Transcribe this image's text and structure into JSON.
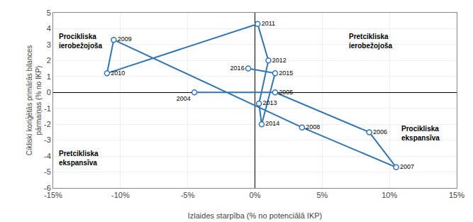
{
  "chart_data": {
    "type": "line",
    "x": [
      -4.5,
      1.5,
      8.5,
      10.5,
      3.5,
      -10.5,
      -11.0,
      0.2,
      1.0,
      0.3,
      0.5,
      1.5,
      -0.5
    ],
    "values": [
      0.0,
      0.0,
      -2.5,
      -4.7,
      -2.2,
      3.3,
      1.2,
      4.3,
      2.0,
      -0.7,
      -2.0,
      1.2,
      1.5
    ],
    "point_labels": [
      "2004",
      "2005",
      "2006",
      "2007",
      "2008",
      "2009",
      "2010",
      "2011",
      "2012",
      "2013",
      "2014",
      "2015",
      "2016"
    ],
    "color": "#2E75B6",
    "marker": "circle",
    "xlabel": "Izlaides starpība (% no potenciālā IKP)",
    "ylabel": "Cikliski koriģētās primārās bilances\npārmaiņas (% no IKP)",
    "xlim": [
      -15,
      15
    ],
    "ylim": [
      -6,
      5
    ],
    "xticks": [
      {
        "value": -15,
        "label": "-15%"
      },
      {
        "value": -10,
        "label": "-10%"
      },
      {
        "value": -5,
        "label": "-5%"
      },
      {
        "value": 0,
        "label": "0%"
      },
      {
        "value": 5,
        "label": "5%"
      },
      {
        "value": 10,
        "label": "10%"
      },
      {
        "value": 15,
        "label": "15%"
      }
    ],
    "yticks": [
      -6,
      -5,
      -4,
      -3,
      -2,
      -1,
      0,
      1,
      2,
      3,
      4,
      5
    ],
    "annotations": [
      "Procikliska\nierobežojoša",
      "Pretcikliska\nierobežojoša",
      "Pretcikliska\nekspansīva",
      "Procikliska\nekspansīva"
    ],
    "grid": true
  }
}
